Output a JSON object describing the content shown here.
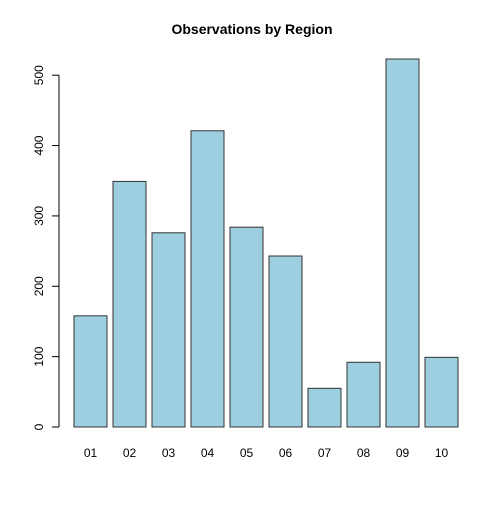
{
  "chart_data": {
    "type": "bar",
    "title": "Observations by Region",
    "xlabel": "",
    "ylabel": "",
    "categories": [
      "01",
      "02",
      "03",
      "04",
      "05",
      "06",
      "07",
      "08",
      "09",
      "10"
    ],
    "values": [
      158,
      349,
      276,
      421,
      284,
      243,
      55,
      92,
      523,
      99
    ],
    "ylim": [
      0,
      523
    ],
    "yticks": [
      0,
      100,
      200,
      300,
      400,
      500
    ],
    "bar_color": "#9ecfe0",
    "bar_stroke": "#333333",
    "grid": false,
    "legend": "none"
  }
}
